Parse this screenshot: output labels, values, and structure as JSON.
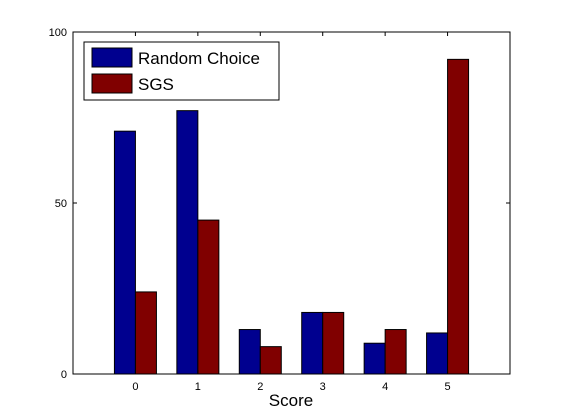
{
  "chart_data": {
    "type": "bar",
    "categories": [
      "0",
      "1",
      "2",
      "3",
      "4",
      "5"
    ],
    "xlabel": "Score",
    "ylabel": "",
    "ylim": [
      0,
      100
    ],
    "yticks": [
      "0",
      "50",
      "100"
    ],
    "grid": false,
    "legend_position": "top-left",
    "series": [
      {
        "name": "Random Choice",
        "color": "#00008f",
        "values": [
          71,
          77,
          13,
          18,
          9,
          12
        ]
      },
      {
        "name": "SGS",
        "color": "#800000",
        "values": [
          24,
          45,
          8,
          18,
          13,
          92
        ]
      }
    ]
  }
}
